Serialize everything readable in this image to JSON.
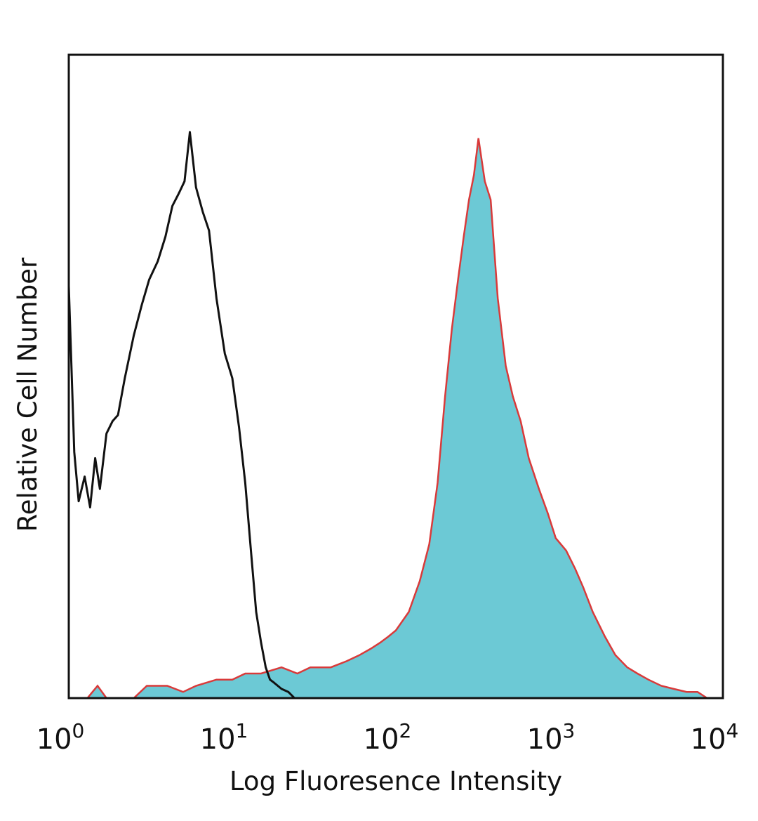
{
  "chart_data": {
    "type": "area",
    "xscale": "log",
    "xlim": [
      1,
      10000
    ],
    "ylim": [
      0,
      1
    ],
    "grid": false,
    "legend": "none",
    "xlabel": "Log Fluoresence Intensity",
    "ylabel": "Relative Cell Number",
    "x_ticks": [
      {
        "value": 1,
        "base": "10",
        "exp": "0"
      },
      {
        "value": 10,
        "base": "10",
        "exp": "1"
      },
      {
        "value": 100,
        "base": "10",
        "exp": "2"
      },
      {
        "value": 1000,
        "base": "10",
        "exp": "3"
      },
      {
        "value": 10000,
        "base": "10",
        "exp": "4"
      }
    ],
    "series": [
      {
        "style": "outline",
        "color": "#111111",
        "points": [
          [
            1.0,
            0.67
          ],
          [
            1.08,
            0.4
          ],
          [
            1.15,
            0.32
          ],
          [
            1.25,
            0.36
          ],
          [
            1.35,
            0.31
          ],
          [
            1.45,
            0.39
          ],
          [
            1.55,
            0.34
          ],
          [
            1.7,
            0.43
          ],
          [
            1.85,
            0.45
          ],
          [
            2.0,
            0.46
          ],
          [
            2.2,
            0.52
          ],
          [
            2.5,
            0.59
          ],
          [
            2.8,
            0.64
          ],
          [
            3.1,
            0.68
          ],
          [
            3.5,
            0.71
          ],
          [
            3.9,
            0.75
          ],
          [
            4.3,
            0.8
          ],
          [
            4.7,
            0.82
          ],
          [
            5.1,
            0.84
          ],
          [
            5.5,
            0.92
          ],
          [
            6.0,
            0.83
          ],
          [
            6.6,
            0.79
          ],
          [
            7.2,
            0.76
          ],
          [
            8.0,
            0.65
          ],
          [
            9.0,
            0.56
          ],
          [
            10.0,
            0.52
          ],
          [
            11.0,
            0.44
          ],
          [
            12.0,
            0.35
          ],
          [
            13.0,
            0.24
          ],
          [
            14.0,
            0.14
          ],
          [
            15.0,
            0.09
          ],
          [
            16.0,
            0.05
          ],
          [
            17.0,
            0.03
          ],
          [
            18.0,
            0.025
          ],
          [
            20.0,
            0.015
          ],
          [
            22.0,
            0.01
          ],
          [
            24.0,
            0.0
          ]
        ]
      },
      {
        "style": "filled",
        "color": "#6cc9d5",
        "edge_color": "#d93a3a",
        "points": [
          [
            1.0,
            0.0
          ],
          [
            1.3,
            0.0
          ],
          [
            1.5,
            0.02
          ],
          [
            1.7,
            0.0
          ],
          [
            2.5,
            0.0
          ],
          [
            3.0,
            0.02
          ],
          [
            4.0,
            0.02
          ],
          [
            5.0,
            0.01
          ],
          [
            6.0,
            0.02
          ],
          [
            8.0,
            0.03
          ],
          [
            10.0,
            0.03
          ],
          [
            12.0,
            0.04
          ],
          [
            15.0,
            0.04
          ],
          [
            20.0,
            0.05
          ],
          [
            25.0,
            0.04
          ],
          [
            30.0,
            0.05
          ],
          [
            40.0,
            0.05
          ],
          [
            50.0,
            0.06
          ],
          [
            60.0,
            0.07
          ],
          [
            70.0,
            0.08
          ],
          [
            80.0,
            0.09
          ],
          [
            90.0,
            0.1
          ],
          [
            100.0,
            0.11
          ],
          [
            120.0,
            0.14
          ],
          [
            140.0,
            0.19
          ],
          [
            160.0,
            0.25
          ],
          [
            180.0,
            0.35
          ],
          [
            200.0,
            0.49
          ],
          [
            220.0,
            0.6
          ],
          [
            240.0,
            0.68
          ],
          [
            260.0,
            0.75
          ],
          [
            280.0,
            0.81
          ],
          [
            300.0,
            0.85
          ],
          [
            320.0,
            0.91
          ],
          [
            350.0,
            0.84
          ],
          [
            380.0,
            0.81
          ],
          [
            420.0,
            0.65
          ],
          [
            470.0,
            0.54
          ],
          [
            520.0,
            0.49
          ],
          [
            580.0,
            0.45
          ],
          [
            650.0,
            0.39
          ],
          [
            750.0,
            0.34
          ],
          [
            850.0,
            0.3
          ],
          [
            950.0,
            0.26
          ],
          [
            1100.0,
            0.24
          ],
          [
            1250.0,
            0.21
          ],
          [
            1400.0,
            0.18
          ],
          [
            1600.0,
            0.14
          ],
          [
            1900.0,
            0.1
          ],
          [
            2200.0,
            0.07
          ],
          [
            2600.0,
            0.05
          ],
          [
            3000.0,
            0.04
          ],
          [
            3500.0,
            0.03
          ],
          [
            4200.0,
            0.02
          ],
          [
            5000.0,
            0.015
          ],
          [
            6000.0,
            0.01
          ],
          [
            7000.0,
            0.01
          ],
          [
            8000.0,
            0.0
          ]
        ]
      }
    ]
  }
}
